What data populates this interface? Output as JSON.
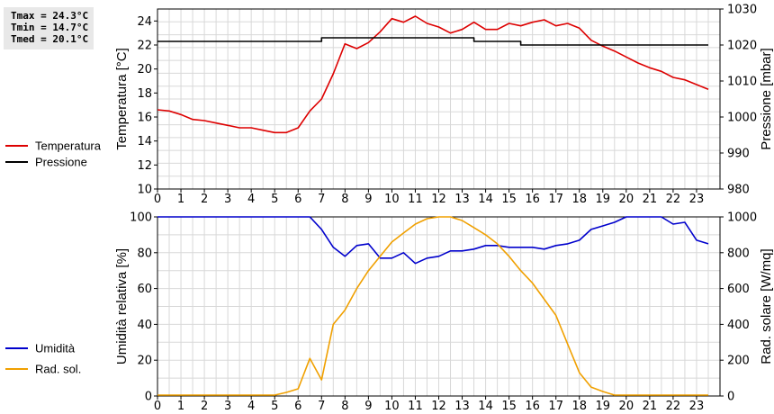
{
  "stats": {
    "tmax": "Tmax = 24.3°C",
    "tmin": "Tmin = 14.7°C",
    "tmed": "Tmed = 20.1°C"
  },
  "chart_data": [
    {
      "type": "line",
      "ylabel": "Temperatura [°C]",
      "y2label": "Pressione [mbar]",
      "ylim": [
        10,
        25
      ],
      "y2lim": [
        980,
        1030
      ],
      "xlim": [
        0,
        24
      ],
      "xticks": [
        "0",
        "1",
        "2",
        "3",
        "4",
        "5",
        "6",
        "7",
        "8",
        "9",
        "10",
        "11",
        "12",
        "13",
        "14",
        "15",
        "16",
        "17",
        "18",
        "19",
        "20",
        "21",
        "22",
        "23"
      ],
      "yticks": [
        "10",
        "12",
        "14",
        "16",
        "18",
        "20",
        "22",
        "24"
      ],
      "y2ticks": [
        "980",
        "990",
        "1000",
        "1010",
        "1020",
        "1030"
      ],
      "grid": true,
      "legend_placement": "left",
      "series": [
        {
          "name": "Temperatura",
          "color": "#dd0000",
          "axis": "left",
          "x": [
            0,
            0.5,
            1,
            1.5,
            2,
            2.5,
            3,
            3.5,
            4,
            4.5,
            5,
            5.5,
            6,
            6.5,
            7,
            7.5,
            8,
            8.5,
            9,
            9.5,
            10,
            10.5,
            11,
            11.5,
            12,
            12.5,
            13,
            13.5,
            14,
            14.5,
            15,
            15.5,
            16,
            16.5,
            17,
            17.5,
            18,
            18.5,
            19,
            19.5,
            20,
            20.5,
            21,
            21.5,
            22,
            22.5,
            23,
            23.5
          ],
          "values": [
            16.6,
            16.5,
            16.2,
            15.8,
            15.7,
            15.5,
            15.3,
            15.1,
            15.1,
            14.9,
            14.7,
            14.7,
            15.1,
            16.5,
            17.5,
            19.6,
            22.1,
            21.7,
            22.2,
            23.1,
            24.2,
            23.9,
            24.4,
            23.8,
            23.5,
            23.0,
            23.3,
            23.9,
            23.3,
            23.3,
            23.8,
            23.6,
            23.9,
            24.1,
            23.6,
            23.8,
            23.4,
            22.4,
            21.9,
            21.5,
            21.0,
            20.5,
            20.1,
            19.8,
            19.3,
            19.1,
            18.7,
            18.3
          ]
        },
        {
          "name": "Pressione",
          "color": "#000000",
          "axis": "right",
          "x": [
            0,
            0.5,
            1,
            1.5,
            2,
            2.5,
            3,
            3.5,
            4,
            4.5,
            5,
            5.5,
            6,
            6.5,
            7,
            7.5,
            8,
            8.5,
            9,
            9.5,
            10,
            10.5,
            11,
            11.5,
            12,
            12.5,
            13,
            13.5,
            14,
            14.5,
            15,
            15.5,
            16,
            16.5,
            17,
            17.5,
            18,
            18.5,
            19,
            19.5,
            20,
            20.5,
            21,
            21.5,
            22,
            22.5,
            23,
            23.5
          ],
          "values": [
            1021,
            1021,
            1021,
            1021,
            1021,
            1021,
            1021,
            1021,
            1021,
            1021,
            1021,
            1021,
            1021,
            1021,
            1022,
            1022,
            1022,
            1022,
            1022,
            1022,
            1022,
            1022,
            1022,
            1022,
            1022,
            1022,
            1022,
            1021,
            1021,
            1021,
            1021,
            1020,
            1020,
            1020,
            1020,
            1020,
            1020,
            1020,
            1020,
            1020,
            1020,
            1020,
            1020,
            1020,
            1020,
            1020,
            1020,
            1020
          ]
        }
      ]
    },
    {
      "type": "line",
      "ylabel": "Umidità relativa [%]",
      "y2label": "Rad. solare [W/mq]",
      "ylim": [
        0,
        100
      ],
      "y2lim": [
        0,
        1000
      ],
      "xlim": [
        0,
        24
      ],
      "xticks": [
        "0",
        "1",
        "2",
        "3",
        "4",
        "5",
        "6",
        "7",
        "8",
        "9",
        "10",
        "11",
        "12",
        "13",
        "14",
        "15",
        "16",
        "17",
        "18",
        "19",
        "20",
        "21",
        "22",
        "23"
      ],
      "yticks": [
        "0",
        "20",
        "40",
        "60",
        "80",
        "100"
      ],
      "y2ticks": [
        "0",
        "200",
        "400",
        "600",
        "800",
        "1000"
      ],
      "grid": true,
      "legend_placement": "left",
      "series": [
        {
          "name": "Umidità",
          "color": "#0000cc",
          "axis": "left",
          "x": [
            0,
            0.5,
            1,
            1.5,
            2,
            2.5,
            3,
            3.5,
            4,
            4.5,
            5,
            5.5,
            6,
            6.5,
            7,
            7.5,
            8,
            8.5,
            9,
            9.5,
            10,
            10.5,
            11,
            11.5,
            12,
            12.5,
            13,
            13.5,
            14,
            14.5,
            15,
            15.5,
            16,
            16.5,
            17,
            17.5,
            18,
            18.5,
            19,
            19.5,
            20,
            20.5,
            21,
            21.5,
            22,
            22.5,
            23,
            23.5
          ],
          "values": [
            100,
            100,
            100,
            100,
            100,
            100,
            100,
            100,
            100,
            100,
            100,
            100,
            100,
            100,
            93,
            83,
            78,
            84,
            85,
            77,
            77,
            80,
            74,
            77,
            78,
            81,
            81,
            82,
            84,
            84,
            83,
            83,
            83,
            82,
            84,
            85,
            87,
            93,
            95,
            97,
            100,
            100,
            100,
            100,
            96,
            97,
            87,
            85
          ]
        },
        {
          "name": "Rad. sol.",
          "color": "#f0a000",
          "axis": "right",
          "x": [
            0,
            0.5,
            1,
            1.5,
            2,
            2.5,
            3,
            3.5,
            4,
            4.5,
            5,
            5.5,
            6,
            6.5,
            7,
            7.5,
            8,
            8.5,
            9,
            9.5,
            10,
            10.5,
            11,
            11.5,
            12,
            12.5,
            13,
            13.5,
            14,
            14.5,
            15,
            15.5,
            16,
            16.5,
            17,
            17.5,
            18,
            18.5,
            19,
            19.5,
            20,
            20.5,
            21,
            21.5,
            22,
            22.5,
            23,
            23.5
          ],
          "values": [
            5,
            5,
            5,
            5,
            5,
            5,
            5,
            5,
            5,
            5,
            5,
            20,
            40,
            210,
            90,
            400,
            480,
            600,
            700,
            780,
            860,
            910,
            960,
            990,
            1000,
            1000,
            980,
            940,
            900,
            850,
            780,
            700,
            630,
            540,
            450,
            290,
            130,
            50,
            25,
            5,
            5,
            5,
            5,
            5,
            5,
            5,
            5,
            5
          ]
        }
      ]
    }
  ]
}
